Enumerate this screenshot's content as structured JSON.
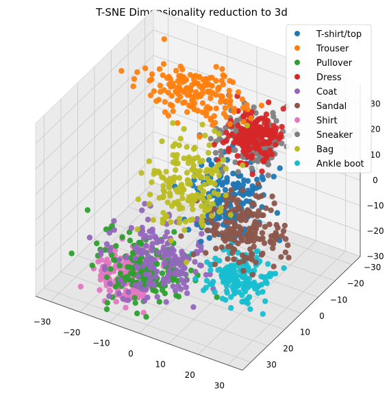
{
  "chart_data": {
    "type": "scatter",
    "projection": "3d",
    "title": "T-SNE Dimensionality reduction to 3d",
    "grid": true,
    "legend_position": "top-right",
    "axes": {
      "x": {
        "range": [
          -35,
          35
        ],
        "ticks": [
          -30,
          -20,
          -10,
          0,
          10,
          20,
          30
        ]
      },
      "y": {
        "range": [
          -35,
          35
        ],
        "ticks": [
          -30,
          -20,
          -10,
          0,
          10,
          20,
          30
        ]
      },
      "z": {
        "range": [
          -30,
          38
        ],
        "ticks": [
          -30,
          -20,
          -10,
          0,
          10,
          20,
          30
        ]
      }
    },
    "series": [
      {
        "name": "T-shirt/top",
        "color": "#1f77b4",
        "cluster_center": [
          8,
          -5,
          2
        ],
        "spread": [
          6,
          9,
          8
        ]
      },
      {
        "name": "Trouser",
        "color": "#ff7f0e",
        "cluster_center": [
          -8,
          -14,
          30
        ],
        "spread": [
          10,
          6,
          4
        ]
      },
      {
        "name": "Pullover",
        "color": "#2ca02c",
        "cluster_center": [
          -10,
          15,
          -22
        ],
        "spread": [
          9,
          8,
          6
        ]
      },
      {
        "name": "Dress",
        "color": "#d62728",
        "cluster_center": [
          12,
          -12,
          22
        ],
        "spread": [
          5,
          5,
          5
        ]
      },
      {
        "name": "Coat",
        "color": "#9467bd",
        "cluster_center": [
          -6,
          14,
          -18
        ],
        "spread": [
          10,
          10,
          8
        ]
      },
      {
        "name": "Sandal",
        "color": "#8c564b",
        "cluster_center": [
          20,
          8,
          2
        ],
        "spread": [
          8,
          8,
          6
        ]
      },
      {
        "name": "Shirt",
        "color": "#e377c2",
        "cluster_center": [
          -12,
          20,
          -22
        ],
        "spread": [
          6,
          6,
          5
        ]
      },
      {
        "name": "Sneaker",
        "color": "#7f7f7f",
        "cluster_center": [
          10,
          -15,
          18
        ],
        "spread": [
          6,
          6,
          6
        ]
      },
      {
        "name": "Bag",
        "color": "#bcbd22",
        "cluster_center": [
          -5,
          -3,
          2
        ],
        "spread": [
          6,
          9,
          11
        ]
      },
      {
        "name": "Ankle boot",
        "color": "#17becf",
        "cluster_center": [
          22,
          15,
          -12
        ],
        "spread": [
          6,
          6,
          4
        ]
      }
    ]
  }
}
